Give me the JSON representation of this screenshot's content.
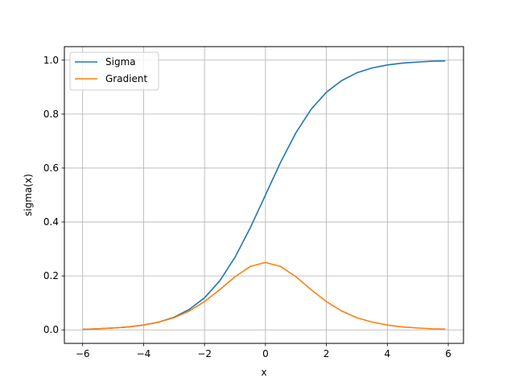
{
  "chart_data": {
    "type": "line",
    "title": "",
    "xlabel": "x",
    "ylabel": "sigma(x)",
    "xlim": [
      -6.6,
      6.5
    ],
    "ylim": [
      -0.05,
      1.05
    ],
    "xticks": [
      -6,
      -4,
      -2,
      0,
      2,
      4,
      6
    ],
    "yticks": [
      0.0,
      0.2,
      0.4,
      0.6,
      0.8,
      1.0
    ],
    "xtick_labels": [
      "−6",
      "−4",
      "−2",
      "0",
      "2",
      "4",
      "6"
    ],
    "ytick_labels": [
      "0.0",
      "0.2",
      "0.4",
      "0.6",
      "0.8",
      "1.0"
    ],
    "grid": true,
    "legend_position": "top-left",
    "x": [
      -6.0,
      -5.5,
      -5.0,
      -4.5,
      -4.0,
      -3.5,
      -3.0,
      -2.5,
      -2.0,
      -1.5,
      -1.0,
      -0.5,
      0.0,
      0.5,
      1.0,
      1.5,
      2.0,
      2.5,
      3.0,
      3.5,
      4.0,
      4.5,
      5.0,
      5.5,
      5.9
    ],
    "series": [
      {
        "name": "Sigma",
        "color": "#1f77b4",
        "values": [
          0.002,
          0.004,
          0.007,
          0.011,
          0.018,
          0.029,
          0.047,
          0.076,
          0.119,
          0.182,
          0.269,
          0.378,
          0.5,
          0.622,
          0.731,
          0.818,
          0.881,
          0.924,
          0.953,
          0.971,
          0.982,
          0.989,
          0.993,
          0.996,
          0.997
        ]
      },
      {
        "name": "Gradient",
        "color": "#ff7f0e",
        "values": [
          0.002,
          0.004,
          0.007,
          0.011,
          0.018,
          0.029,
          0.045,
          0.07,
          0.105,
          0.149,
          0.197,
          0.235,
          0.25,
          0.235,
          0.197,
          0.149,
          0.105,
          0.07,
          0.045,
          0.029,
          0.018,
          0.011,
          0.007,
          0.004,
          0.003
        ]
      }
    ]
  }
}
